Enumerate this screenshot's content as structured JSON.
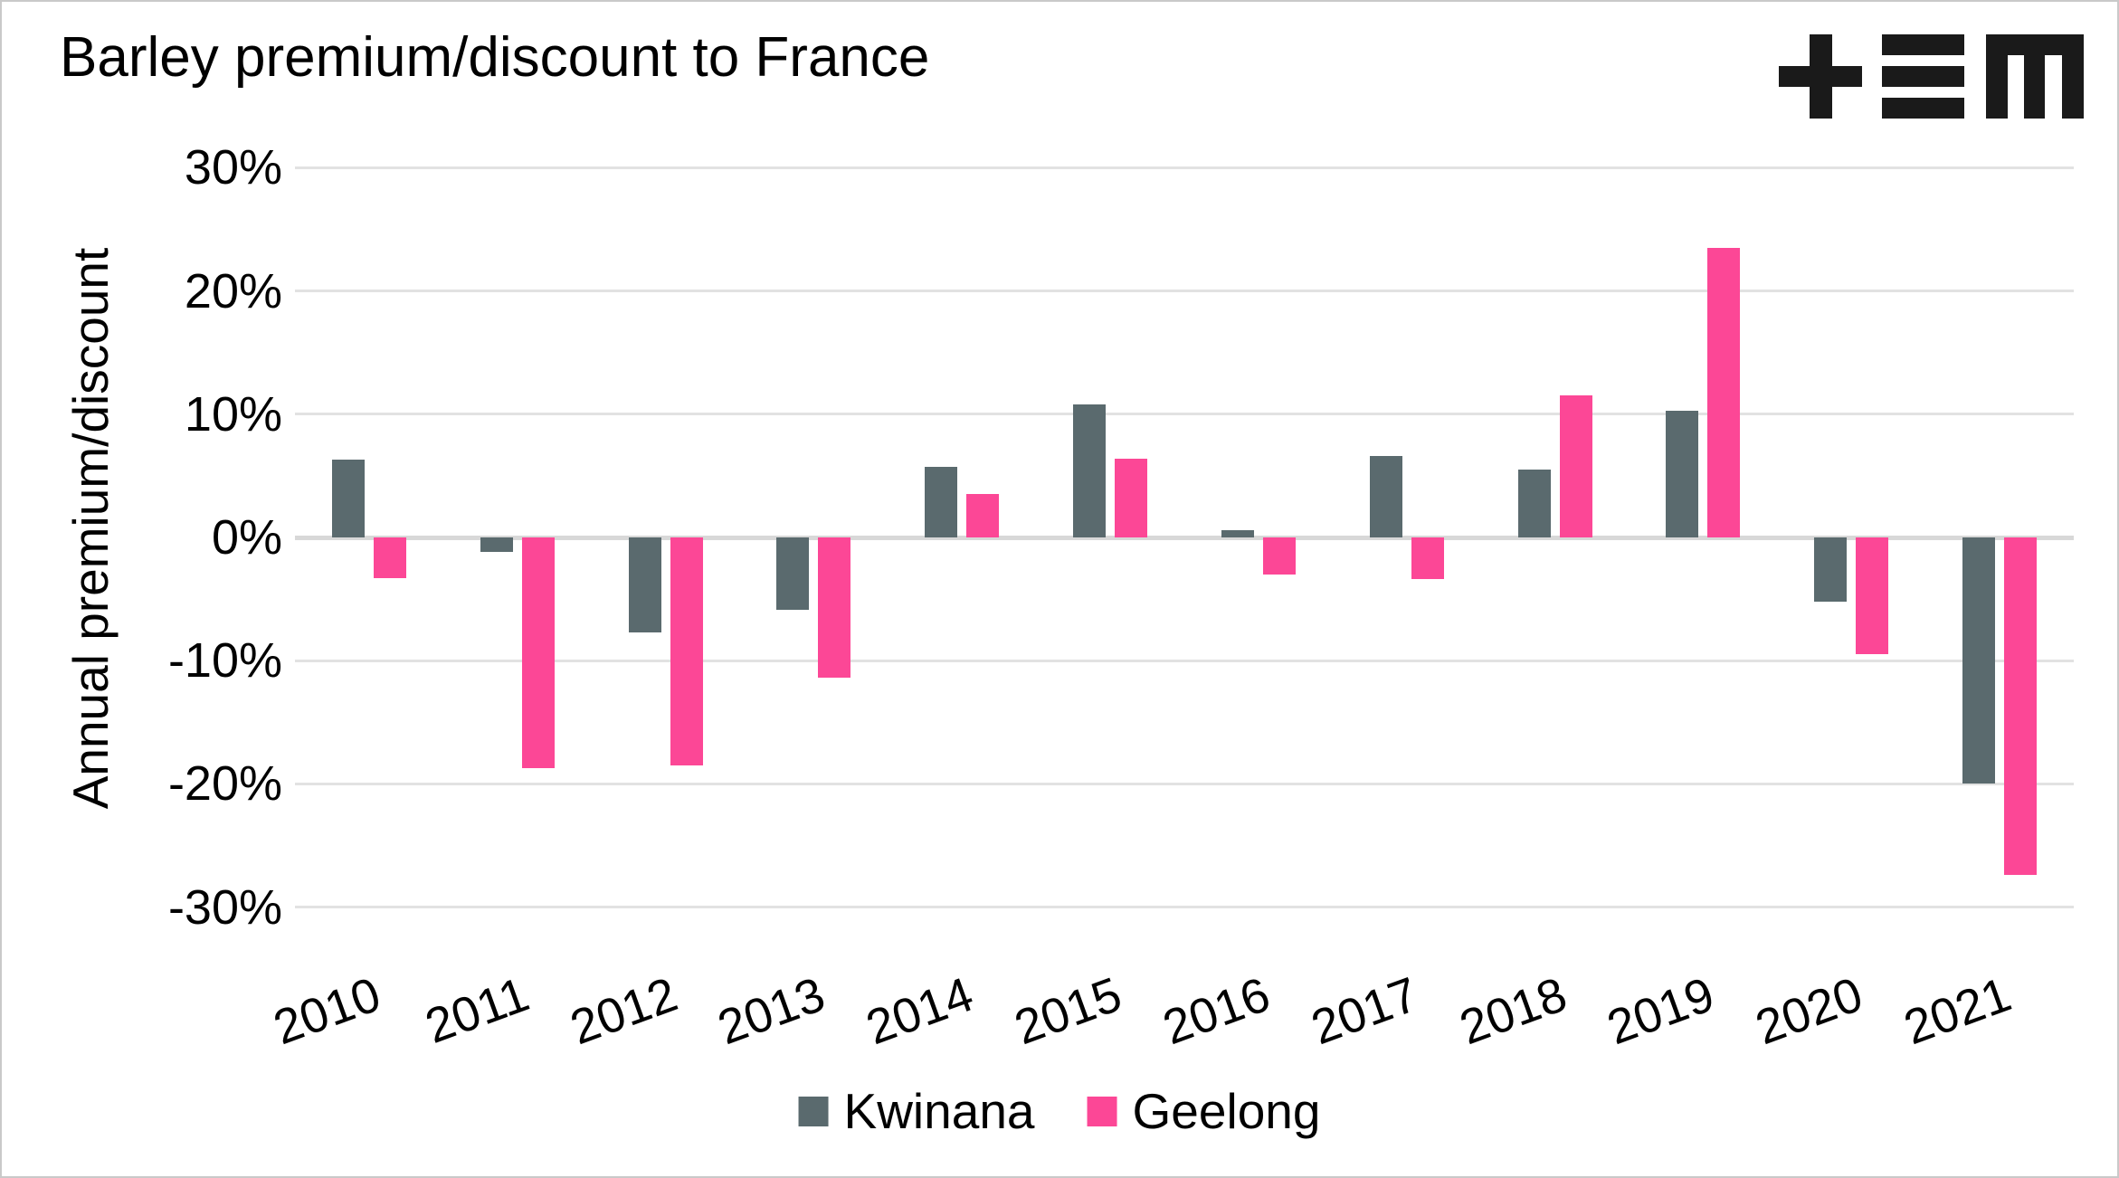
{
  "header": {
    "title": "Barley premium/discount to France",
    "brand_logo_icon": "tem-monogram (plus, triple-bar, block-M)"
  },
  "colors": {
    "kwinana": "#5a6a6e",
    "geelong": "#fc4796",
    "gridline": "#e2e2e2",
    "zero_line": "#d8d8d8",
    "logo": "#1a1a1a",
    "text": "#000000",
    "background": "#ffffff"
  },
  "chart_data": {
    "type": "bar",
    "title": "Barley premium/discount to France",
    "xlabel": "",
    "ylabel": "Annual premium/discount",
    "unit": "%",
    "categories": [
      "2010",
      "2011",
      "2012",
      "2013",
      "2014",
      "2015",
      "2016",
      "2017",
      "2018",
      "2019",
      "2020",
      "2021"
    ],
    "series": [
      {
        "name": "Kwinana",
        "color": "#5a6a6e",
        "values": [
          6.3,
          -1.2,
          -7.7,
          -5.9,
          5.7,
          10.8,
          0.6,
          6.6,
          5.5,
          10.3,
          -5.2,
          -20.0
        ]
      },
      {
        "name": "Geelong",
        "color": "#fc4796",
        "values": [
          -3.3,
          -18.7,
          -18.5,
          -11.4,
          3.5,
          6.4,
          -3.0,
          -3.4,
          11.5,
          23.5,
          -9.5,
          -27.4
        ]
      }
    ],
    "ylim": [
      -30,
      30
    ],
    "yticks": [
      30,
      20,
      10,
      0,
      -10,
      -20,
      -30
    ],
    "ytick_labels": [
      "30%",
      "20%",
      "10%",
      "0%",
      "-10%",
      "-20%",
      "-30%"
    ],
    "grid": true,
    "legend_position": "bottom"
  }
}
